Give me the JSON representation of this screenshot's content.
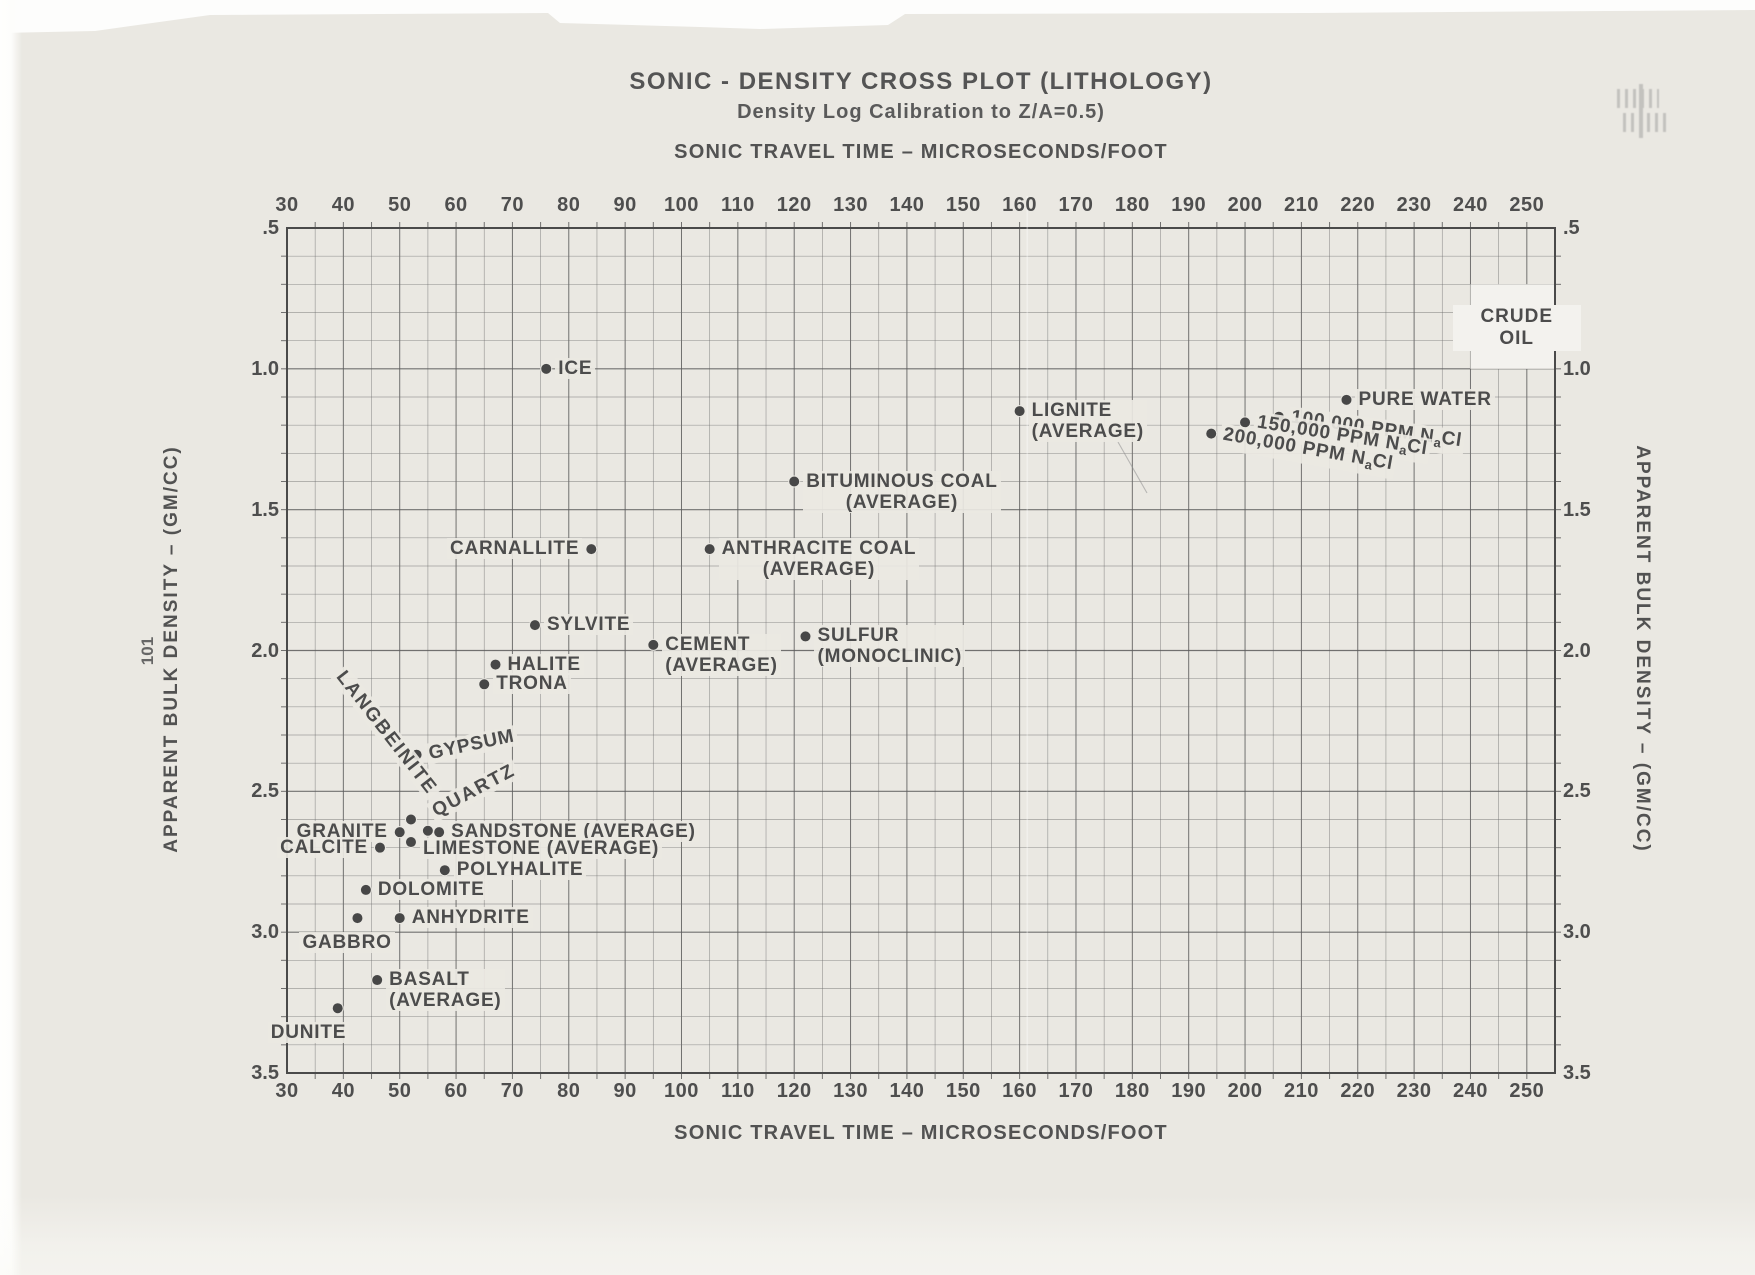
{
  "header": {
    "title": "SONIC - DENSITY CROSS PLOT (LITHOLOGY)",
    "subtitle": "Density Log Calibration to Z/A=0.5)"
  },
  "axes": {
    "top_title": "SONIC TRAVEL TIME – MICROSECONDS/FOOT",
    "bottom_title": "SONIC TRAVEL TIME – MICROSECONDS/FOOT",
    "left_title": "APPARENT BULK DENSITY – (GM/CC)",
    "right_title": "APPARENT BULK DENSITY – (GM/CC)"
  },
  "page_number": "101",
  "colors": {
    "paper": "#eae8e2",
    "ink": "#4f4f4f",
    "grid_minor": "#6e6e6e",
    "grid_major": "#5c5c5c",
    "border": "#4a4a4a",
    "dot": "#474747"
  },
  "chart_data": {
    "type": "scatter",
    "title": "SONIC - DENSITY CROSS PLOT (LITHOLOGY)",
    "subtitle": "Density Log Calibration to Z/A=0.5)",
    "xlabel": "SONIC TRAVEL TIME – MICROSECONDS/FOOT",
    "ylabel": "APPARENT BULK DENSITY – (GM/CC)",
    "xlim": [
      30,
      255
    ],
    "ylim": [
      0.5,
      3.5
    ],
    "y_inverted": true,
    "grid": true,
    "x_grid_step": 5,
    "x_label_step": 10,
    "y_grid_step": 0.1,
    "y_label_step": 0.5,
    "x_ticks": [
      30,
      40,
      50,
      60,
      70,
      80,
      90,
      100,
      110,
      120,
      130,
      140,
      150,
      160,
      170,
      180,
      190,
      200,
      210,
      220,
      230,
      240,
      250
    ],
    "y_ticks": [
      {
        "label": ".5",
        "value": 0.5
      },
      {
        "label": "1.0",
        "value": 1.0
      },
      {
        "label": "1.5",
        "value": 1.5
      },
      {
        "label": "2.0",
        "value": 2.0
      },
      {
        "label": "2.5",
        "value": 2.5
      },
      {
        "label": "3.0",
        "value": 3.0
      },
      {
        "label": "3.5",
        "value": 3.5
      }
    ],
    "points": [
      {
        "name": "ice",
        "lines": [
          "ICE"
        ],
        "x": 76,
        "y": 1.0,
        "placement": "right"
      },
      {
        "name": "lignite",
        "lines": [
          "LIGNITE",
          "(AVERAGE)"
        ],
        "x": 160,
        "y": 1.15,
        "placement": "right"
      },
      {
        "name": "pure-water",
        "lines": [
          "PURE WATER"
        ],
        "x": 218,
        "y": 1.11,
        "placement": "right"
      },
      {
        "name": "nacl-100000",
        "lines": [
          "100,000 PPM NaCl"
        ],
        "x": 206,
        "y": 1.17,
        "placement": "right",
        "rotate": 8
      },
      {
        "name": "nacl-150000",
        "lines": [
          "150,000 PPM NaCl"
        ],
        "x": 200,
        "y": 1.19,
        "placement": "right",
        "rotate": 9
      },
      {
        "name": "nacl-200000",
        "lines": [
          "200,000 PPM NaCl"
        ],
        "x": 194,
        "y": 1.23,
        "placement": "right",
        "rotate": 10
      },
      {
        "name": "bituminous-coal",
        "lines": [
          "BITUMINOUS COAL",
          "(AVERAGE)"
        ],
        "x": 120,
        "y": 1.4,
        "placement": "right",
        "align": "center"
      },
      {
        "name": "anthracite-coal",
        "lines": [
          "ANTHRACITE COAL",
          "(AVERAGE)"
        ],
        "x": 105,
        "y": 1.64,
        "placement": "right",
        "align": "center"
      },
      {
        "name": "carnallite",
        "lines": [
          "CARNALLITE"
        ],
        "x": 84,
        "y": 1.64,
        "placement": "left"
      },
      {
        "name": "sylvite",
        "lines": [
          "SYLVITE"
        ],
        "x": 74,
        "y": 1.91,
        "placement": "right"
      },
      {
        "name": "cement",
        "lines": [
          "CEMENT",
          "(AVERAGE)"
        ],
        "x": 95,
        "y": 1.98,
        "placement": "right"
      },
      {
        "name": "sulfur",
        "lines": [
          "SULFUR",
          "(MONOCLINIC)"
        ],
        "x": 122,
        "y": 1.95,
        "placement": "right"
      },
      {
        "name": "halite",
        "lines": [
          "HALITE"
        ],
        "x": 67,
        "y": 2.05,
        "placement": "right"
      },
      {
        "name": "trona",
        "lines": [
          "TRONA"
        ],
        "x": 65,
        "y": 2.12,
        "placement": "right"
      },
      {
        "name": "gypsum",
        "lines": [
          "GYPSUM"
        ],
        "x": 53,
        "y": 2.37,
        "placement": "right",
        "rotate": -12
      },
      {
        "name": "langbeinite",
        "lines": [
          "LANGBEINITE"
        ],
        "x": 52,
        "y": 2.6,
        "placement": "diag-left",
        "rotate": 52
      },
      {
        "name": "quartz",
        "lines": [
          "QUARTZ"
        ],
        "x": 55,
        "y": 2.64,
        "placement": "diag-right",
        "rotate": -28
      },
      {
        "name": "sandstone",
        "lines": [
          "SANDSTONE (AVERAGE)"
        ],
        "x": 57,
        "y": 2.645,
        "placement": "right"
      },
      {
        "name": "granite",
        "lines": [
          "GRANITE"
        ],
        "x": 50,
        "y": 2.645,
        "placement": "left"
      },
      {
        "name": "limestone",
        "lines": [
          "LIMESTONE (AVERAGE)"
        ],
        "x": 52,
        "y": 2.68,
        "placement": "right",
        "dy": 7
      },
      {
        "name": "calcite",
        "lines": [
          "CALCITE"
        ],
        "x": 46.5,
        "y": 2.7,
        "placement": "left"
      },
      {
        "name": "polyhalite",
        "lines": [
          "POLYHALITE"
        ],
        "x": 58,
        "y": 2.78,
        "placement": "right"
      },
      {
        "name": "dolomite",
        "lines": [
          "DOLOMITE"
        ],
        "x": 44,
        "y": 2.85,
        "placement": "right"
      },
      {
        "name": "anhydrite",
        "lines": [
          "ANHYDRITE"
        ],
        "x": 50,
        "y": 2.95,
        "placement": "right"
      },
      {
        "name": "gabbro",
        "lines": [
          "GABBRO"
        ],
        "x": 42.5,
        "y": 2.95,
        "placement": "below",
        "dx": -58
      },
      {
        "name": "basalt",
        "lines": [
          "BASALT",
          "(AVERAGE)"
        ],
        "x": 46,
        "y": 3.17,
        "placement": "right"
      },
      {
        "name": "dunite",
        "lines": [
          "DUNITE"
        ],
        "x": 39,
        "y": 3.27,
        "placement": "below",
        "dx": -70
      }
    ],
    "regions": [
      {
        "name": "crude-oil",
        "lines": [
          "CRUDE",
          "OIL"
        ],
        "x": [
          240,
          255
        ],
        "y": [
          0.7,
          1.0
        ],
        "style": "hatched"
      }
    ]
  }
}
